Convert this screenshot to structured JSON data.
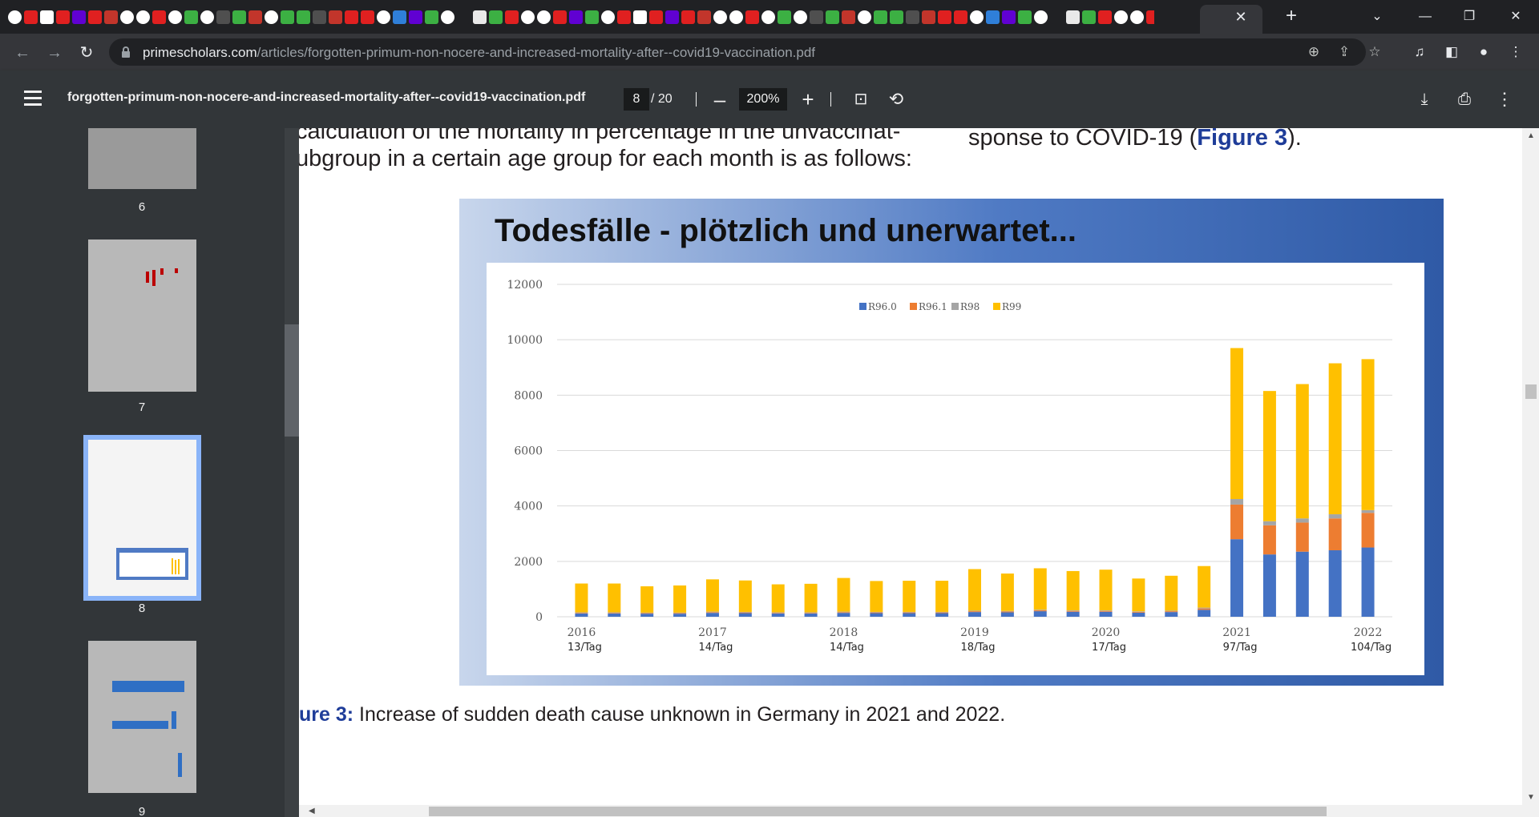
{
  "browser": {
    "tabs_active_close": "✕",
    "new_tab": "+",
    "url_host": "primescholars.com",
    "url_path": "/articles/forgotten-primum-non-nocere-and-increased-mortality-after--covid19-vaccination.pdf"
  },
  "pdf_toolbar": {
    "doc_name": "forgotten-primum-non-nocere-and-increased-mortality-after--covid19-vaccination.pdf",
    "current_page": "8",
    "total_pages": "/ 20",
    "zoom": "200%"
  },
  "sidebar": {
    "thumbs": [
      {
        "label": "6"
      },
      {
        "label": "7"
      },
      {
        "label": "8"
      },
      {
        "label": "9"
      }
    ]
  },
  "page": {
    "left_line1": "calculation of the mortality in percentage in the unvaccinat-",
    "left_line2": "ubgroup in a certain age group for each month is as follows:",
    "right_line_pre": "sponse to COVID-19 (",
    "right_line_link": "Figure 3",
    "right_line_post": ").",
    "caption_label": "ure 3:",
    "caption_text": " Increase of sudden death cause unknown in Germany in 2021 and 2022."
  },
  "chart_data": {
    "type": "bar",
    "stacked": true,
    "title": "Todesfälle - plötzlich und unerwartet...",
    "ylim": [
      0,
      12000
    ],
    "yticks": [
      "0",
      "2000",
      "4000",
      "6000",
      "8000",
      "10000",
      "12000"
    ],
    "legend_position": "top-center",
    "grid": true,
    "year_labels": [
      "2016",
      "2017",
      "2018",
      "2019",
      "2020",
      "2021",
      "2022"
    ],
    "per_day_labels": [
      "13/Tag",
      "14/Tag",
      "14/Tag",
      "18/Tag",
      "17/Tag",
      "97/Tag",
      "104/Tag"
    ],
    "series": [
      {
        "name": "R96.0",
        "color": "#4472c4",
        "values": [
          120,
          120,
          110,
          110,
          140,
          130,
          120,
          120,
          140,
          130,
          130,
          130,
          170,
          160,
          200,
          180,
          180,
          150,
          170,
          250,
          2800,
          2250,
          2350,
          2400,
          2500
        ]
      },
      {
        "name": "R96.1",
        "color": "#ed7d31",
        "values": [
          20,
          20,
          20,
          20,
          25,
          25,
          20,
          20,
          25,
          25,
          25,
          25,
          30,
          30,
          35,
          30,
          30,
          25,
          30,
          50,
          1250,
          1050,
          1050,
          1150,
          1250
        ]
      },
      {
        "name": "R98",
        "color": "#a5a5a5",
        "values": [
          20,
          20,
          20,
          20,
          20,
          20,
          20,
          20,
          20,
          20,
          20,
          20,
          20,
          20,
          20,
          20,
          20,
          20,
          20,
          30,
          200,
          150,
          150,
          150,
          100
        ]
      },
      {
        "name": "R99",
        "color": "#ffc000",
        "values": [
          1040,
          1040,
          950,
          980,
          1165,
          1135,
          1010,
          1030,
          1215,
          1115,
          1125,
          1125,
          1500,
          1350,
          1495,
          1420,
          1470,
          1185,
          1260,
          1500,
          5450,
          4700,
          4850,
          5450,
          5450
        ]
      }
    ]
  }
}
